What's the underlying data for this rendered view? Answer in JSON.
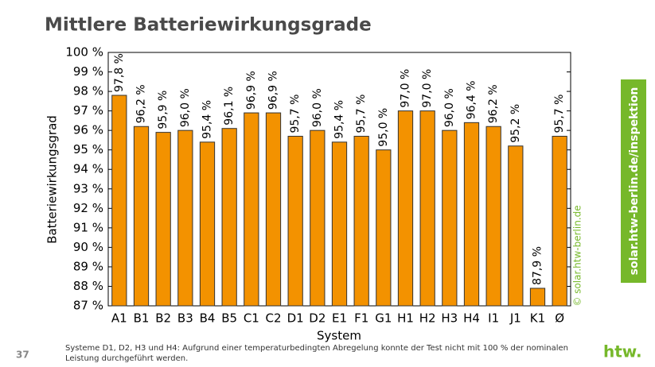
{
  "chart_data": {
    "type": "bar",
    "title": "Mittlere Batteriewirkungsgrade",
    "y_label": "Batteriewirkungsgrad",
    "x_label": "System",
    "watermark": "© solar.htw-berlin.de",
    "categories": [
      "A1",
      "B1",
      "B2",
      "B3",
      "B4",
      "B5",
      "C1",
      "C2",
      "D1",
      "D2",
      "E1",
      "F1",
      "G1",
      "H1",
      "H2",
      "H3",
      "H4",
      "I1",
      "J1",
      "K1",
      "Ø"
    ],
    "values": [
      97.8,
      96.2,
      95.9,
      96.0,
      95.4,
      96.1,
      96.9,
      96.9,
      95.7,
      96.0,
      95.4,
      95.7,
      95.0,
      97.0,
      97.0,
      96.0,
      96.4,
      96.2,
      95.2,
      87.9,
      95.7
    ],
    "value_labels": [
      "97,8 %",
      "96,2 %",
      "95,9 %",
      "96,0 %",
      "95,4 %",
      "96,1 %",
      "96,9 %",
      "96,9 %",
      "95,7 %",
      "96,0 %",
      "95,4 %",
      "95,7 %",
      "95,0 %",
      "97,0 %",
      "97,0 %",
      "96,0 %",
      "96,4 %",
      "96,2 %",
      "95,2 %",
      "87,9 %",
      "95,7 %"
    ],
    "color": "#f39200",
    "ylim": [
      87,
      100
    ],
    "yticks": [
      {
        "value": 87,
        "label": "87 %"
      },
      {
        "value": 88,
        "label": "88 %"
      },
      {
        "value": 89,
        "label": "89 %"
      },
      {
        "value": 90,
        "label": "90 %"
      },
      {
        "value": 91,
        "label": "91 %"
      },
      {
        "value": 92,
        "label": "92 %"
      },
      {
        "value": 93,
        "label": "93 %"
      },
      {
        "value": 94,
        "label": "94 %"
      },
      {
        "value": 95,
        "label": "95 %"
      },
      {
        "value": 96,
        "label": "96 %"
      },
      {
        "value": 97,
        "label": "97 %"
      },
      {
        "value": 98,
        "label": "98 %"
      },
      {
        "value": 99,
        "label": "99 %"
      },
      {
        "value": 100,
        "label": "100 %"
      }
    ],
    "grid": false
  },
  "page": {
    "side_link": "solar.htw-berlin.de/inspektion",
    "page_number": "37",
    "footnote": [
      "Systeme D1, D2, H3 und H4: Aufgrund einer temperaturbedingten Abregelung konnte der Test nicht mit 100 % der nominalen",
      "Leistung durchgeführt werden."
    ],
    "logo": "htw."
  }
}
